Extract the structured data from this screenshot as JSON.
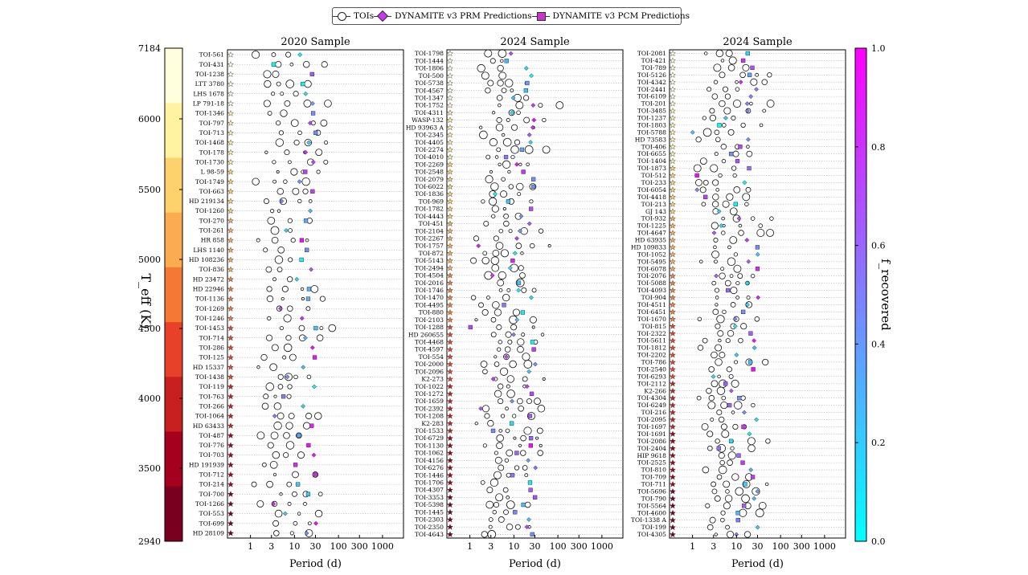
{
  "legend": {
    "tois": "TOIs",
    "prm": "DYNAMITE v3 PRM Predictions",
    "pcm": "DYNAMITE v3 PCM Predictions"
  },
  "teff_axis": {
    "label": "T_eff (K)",
    "ticks": [
      "7184",
      "6000",
      "5500",
      "5000",
      "4500",
      "4000",
      "3500",
      "2940"
    ],
    "colors": [
      "#7a0020",
      "#a5001e",
      "#c81f1f",
      "#e8412a",
      "#f57935",
      "#fbab50",
      "#fdd26c",
      "#fff3a2",
      "#ffffdd"
    ]
  },
  "fraction_axis": {
    "label": "f_recovered",
    "ticks": [
      "0.0",
      "0.2",
      "0.4",
      "0.6",
      "0.8",
      "1.0"
    ],
    "color_low": "#00ffff",
    "color_high": "#ff00ff"
  },
  "chart_data": [
    {
      "type": "scatter",
      "title": "2020 Sample",
      "xlabel": "Period (d)",
      "xscale": "log",
      "xlim": [
        0.3,
        3000
      ],
      "xticks": [
        "1",
        "3",
        "10",
        "30",
        "100",
        "300",
        "1000"
      ],
      "systems": [
        "TOI-561",
        "TOI-431",
        "TOI-1238",
        "LTT 3780",
        "LHS 1678",
        "LP 791-18",
        "TOI-1346",
        "TOI-797",
        "TOI-713",
        "TOI-1468",
        "TOI-178",
        "TOI-1730",
        "L 98-59",
        "TOI-1749",
        "TOI-663",
        "HD 219134",
        "TOI-1260",
        "TOI-270",
        "TOI-261",
        "HR 858",
        "LHS 1140",
        "HD 108236",
        "TOI-836",
        "HD 23472",
        "HD 22946",
        "TOI-1136",
        "TOI-1269",
        "TOI-1246",
        "TOI-1453",
        "TOI-714",
        "TOI-286",
        "TOI-125",
        "HD 15337",
        "TOI-1438",
        "TOI-119",
        "TOI-763",
        "TOI-266",
        "TOI-1064",
        "HD 63433",
        "TOI-487",
        "TOI-776",
        "TOI-703",
        "HD 191939",
        "TOI-712",
        "TOI-214",
        "TOI-700",
        "TOI-1266",
        "TOI-553",
        "TOI-699",
        "HD 28109"
      ]
    },
    {
      "type": "scatter",
      "title": "2024 Sample",
      "xlabel": "Period (d)",
      "xscale": "log",
      "xlim": [
        0.3,
        3000
      ],
      "xticks": [
        "1",
        "3",
        "10",
        "30",
        "100",
        "300",
        "1000"
      ],
      "systems": [
        "TOI-1798",
        "TOI-1444",
        "TOI-1806",
        "TOI-500",
        "TOI-5738",
        "TOI-4567",
        "TOI-1347",
        "TOI-1752",
        "TOI-4311",
        "WASP-132",
        "HD 93963 A",
        "TOI-2345",
        "TOI-4405",
        "TOI-2274",
        "TOI-4010",
        "TOI-2269",
        "TOI-2548",
        "TOI-2079",
        "TOI-6022",
        "TOI-1836",
        "TOI-969",
        "TOI-1782",
        "TOI-4443",
        "TOI-451",
        "TOI-2104",
        "TOI-2267",
        "TOI-1757",
        "TOI-872",
        "TOI-5143",
        "TOI-2494",
        "TOI-4504",
        "TOI-2016",
        "TOI-1746",
        "TOI-1470",
        "TOI-4495",
        "TOI-880",
        "TOI-2103",
        "TOI-1288",
        "HD 260655",
        "TOI-4468",
        "TOI-4597",
        "TOI-554",
        "TOI-2000",
        "TOI-2096",
        "K2-273",
        "TOI-1022",
        "TOI-1272",
        "TOI-1659",
        "TOI-2392",
        "TOI-1208",
        "K2-283",
        "TOI-1533",
        "TOI-6729",
        "TOI-1130",
        "TOI-1062",
        "TOI-4156",
        "TOI-6276",
        "TOI-1446",
        "TOI-1706",
        "TOI-4307",
        "TOI-3353",
        "TOI-5398",
        "TOI-1445",
        "TOI-2303",
        "TOI-2350",
        "TOI-4643"
      ]
    },
    {
      "type": "scatter",
      "title": "2024 Sample",
      "xlabel": "Period (d)",
      "xscale": "log",
      "xlim": [
        0.3,
        3000
      ],
      "xticks": [
        "1",
        "3",
        "10",
        "30",
        "100",
        "300",
        "1000"
      ],
      "systems": [
        "TOI-2081",
        "TOI-421",
        "TOI-789",
        "TOI-5126",
        "TOI-4342",
        "TOI-2441",
        "TOI-6109",
        "TOI-201",
        "TOI-3485",
        "TOI-1237",
        "TOI-1803",
        "TOI-5788",
        "HD 73583",
        "TOI-406",
        "TOI-6655",
        "TOI-1404",
        "TOI-1873",
        "TOI-512",
        "TOI-233",
        "TOI-6054",
        "TOI-4418",
        "TOI-213",
        "GJ 143",
        "TOI-932",
        "TOI-1225",
        "TOI-4647",
        "HD 63935",
        "HD 109833",
        "TOI-1052",
        "TOI-5495",
        "TOI-6078",
        "TOI-2076",
        "TOI-5088",
        "TOI-4093",
        "TOI-904",
        "TOI-4511",
        "TOI-6451",
        "TOI-1670",
        "TOI-815",
        "TOI-2322",
        "TOI-5611",
        "TOI-1812",
        "TOI-2202",
        "TOI-786",
        "TOI-2540",
        "TOI-6293",
        "TOI-2112",
        "K2-266",
        "TOI-4304",
        "TOI-6249",
        "TOI-216",
        "TOI-2095",
        "TOI-1697",
        "TOI-1691",
        "TOI-2086",
        "TOI-2404",
        "HIP 9618",
        "TOI-2525",
        "TOI-810",
        "TOI-709",
        "TOI-711",
        "TOI-5696",
        "TOI-790",
        "TOI-5564",
        "TOI-4600",
        "TOI-1338 A",
        "TOI-199",
        "TOI-4305"
      ]
    }
  ]
}
